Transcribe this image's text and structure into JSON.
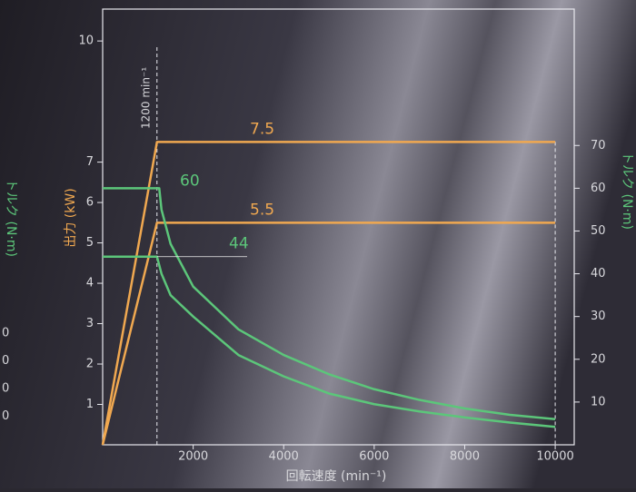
{
  "chart_data": {
    "type": "line",
    "xlabel": "回転速度 (min⁻¹)",
    "ylabel": "出力 (kW)",
    "y2label": "トルク (N·m)",
    "xlim": [
      0,
      10420
    ],
    "xticks": [
      2000,
      4000,
      6000,
      8000,
      10000
    ],
    "ylim": [
      0,
      10.79
    ],
    "yticks": [
      1,
      2,
      3,
      4,
      5,
      6,
      7,
      10
    ],
    "y2lim": [
      0,
      101.9
    ],
    "y2ticks": [
      10,
      20,
      30,
      40,
      50,
      60,
      70
    ],
    "annotations": [
      {
        "text": "1200 min⁻¹",
        "x": 1200
      }
    ],
    "series": [
      {
        "color": "#f0a850",
        "label": 7.5,
        "x": [
          0,
          1200,
          10000
        ],
        "values": [
          0,
          7.5,
          7.5
        ]
      },
      {
        "color": "#f0a850",
        "label": 5.5,
        "x": [
          0,
          1200,
          10000
        ],
        "values": [
          0,
          5.5,
          5.5
        ]
      },
      {
        "color": "#5cc67a",
        "axis": "y2",
        "label": 60,
        "x": [
          0,
          1250,
          1300,
          1500,
          2000,
          3000,
          4000,
          5000,
          6000,
          7000,
          8000,
          9000,
          10000
        ],
        "values": [
          60,
          60,
          55,
          47,
          37,
          27,
          21,
          16.5,
          13,
          10.5,
          8.5,
          7,
          6
        ]
      },
      {
        "color": "#5cc67a",
        "axis": "y2",
        "label": 44,
        "x": [
          0,
          1200,
          1300,
          1500,
          2000,
          3000,
          4000,
          5000,
          6000,
          7000,
          8000,
          9000,
          10000
        ],
        "values": [
          44,
          44,
          40,
          35,
          30,
          21,
          16,
          12,
          9.5,
          7.8,
          6.4,
          5.2,
          4.2
        ]
      }
    ],
    "left_fragment": {
      "label": "トルク (N·m)",
      "ticks": [
        "0",
        "0",
        "0",
        "0"
      ]
    }
  }
}
